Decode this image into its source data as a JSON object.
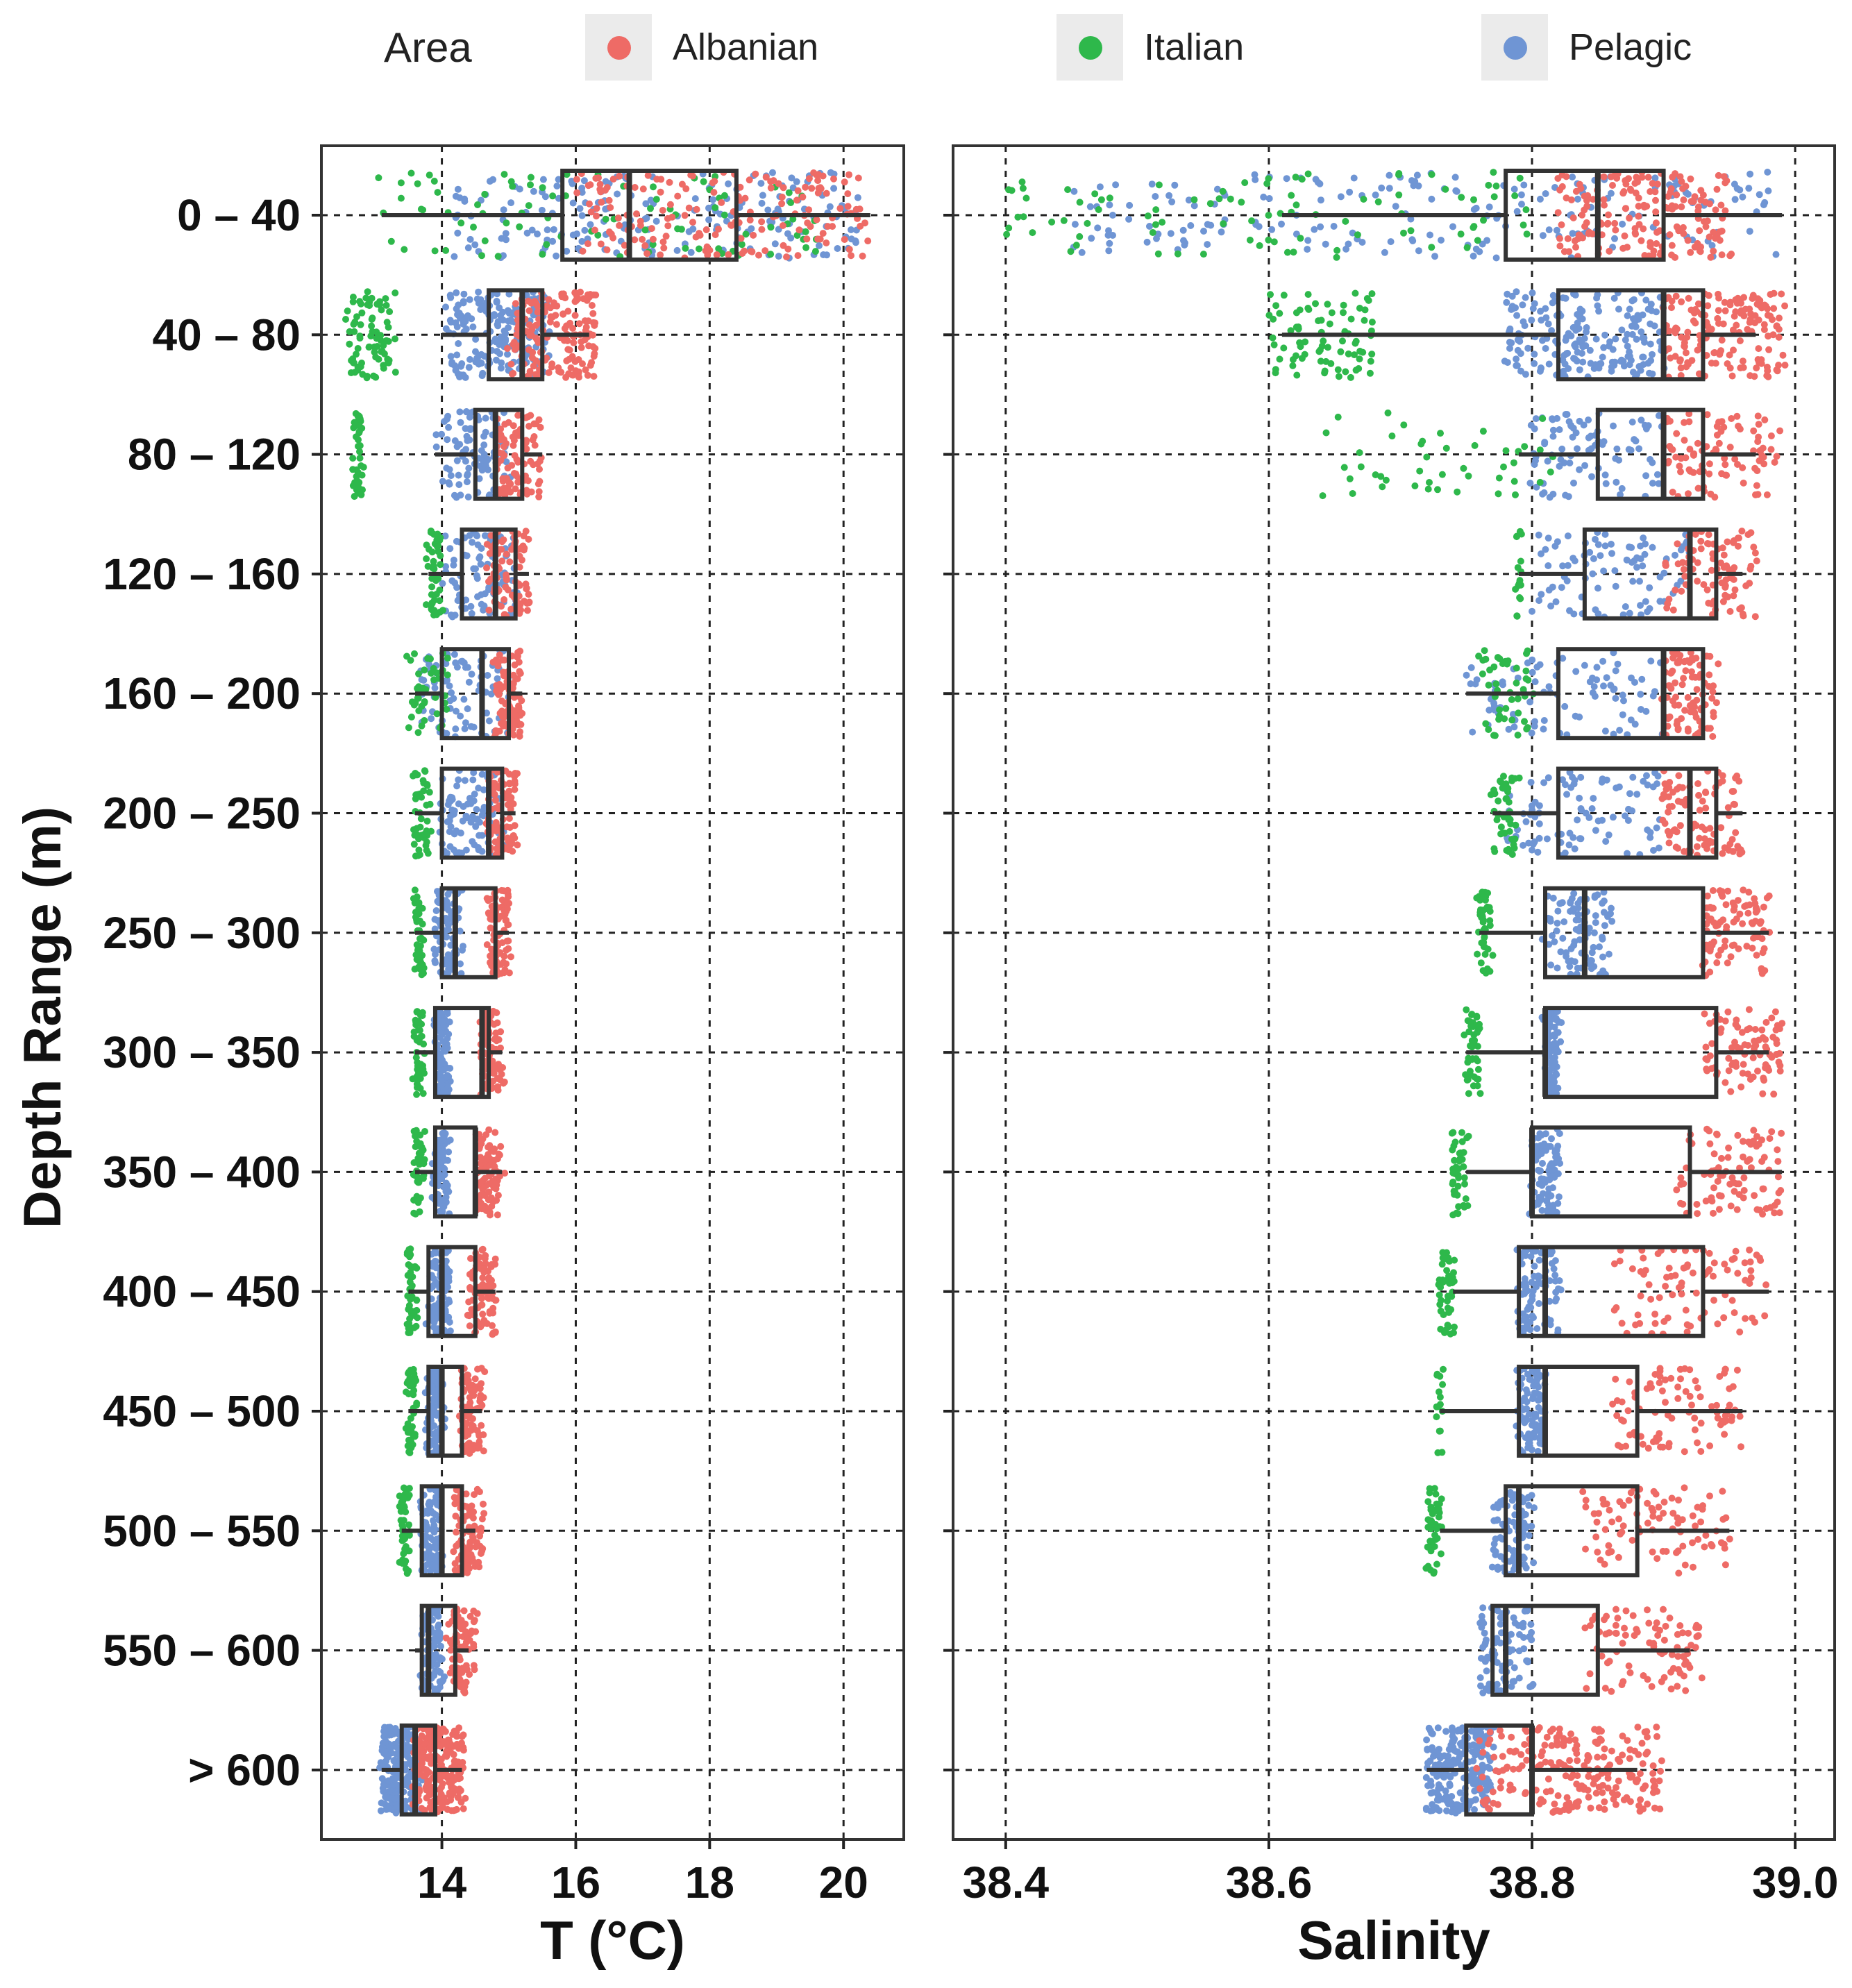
{
  "legend": {
    "title": "Area",
    "items": [
      {
        "label": "Albanian",
        "color": "#ee6b66"
      },
      {
        "label": "Italian",
        "color": "#2eb84b"
      },
      {
        "label": "Pelagic",
        "color": "#6f95d4"
      }
    ]
  },
  "y_axis": {
    "title": "Depth Range (m)",
    "categories": [
      "0 – 40",
      "40 – 80",
      "80 – 120",
      "120 – 160",
      "160 – 200",
      "200 – 250",
      "250 – 300",
      "300 – 350",
      "350 – 400",
      "400 – 450",
      "450 – 500",
      "500 – 550",
      "550 – 600",
      "> 600"
    ]
  },
  "chart_data": [
    {
      "type": "boxplot",
      "title": "",
      "xlabel": "T (°C)",
      "ylabel": "Depth Range (m)",
      "xlim": [
        12.2,
        20.9
      ],
      "xticks": [
        14,
        16,
        18,
        20
      ],
      "xtick_labels": [
        "14",
        "16",
        "18",
        "20"
      ],
      "categories": [
        "0 – 40",
        "40 – 80",
        "80 – 120",
        "120 – 160",
        "160 – 200",
        "200 – 250",
        "250 – 300",
        "300 – 350",
        "350 – 400",
        "400 – 450",
        "450 – 500",
        "500 – 550",
        "550 – 600",
        "> 600"
      ],
      "boxes": [
        {
          "whisker_low": 13.1,
          "q1": 15.8,
          "median": 16.8,
          "q3": 18.4,
          "whisker_high": 20.4
        },
        {
          "whisker_low": 14.0,
          "q1": 14.7,
          "median": 15.2,
          "q3": 15.5,
          "whisker_high": 16.2
        },
        {
          "whisker_low": 13.9,
          "q1": 14.5,
          "median": 14.8,
          "q3": 15.2,
          "whisker_high": 15.5
        },
        {
          "whisker_low": 13.8,
          "q1": 14.3,
          "median": 14.8,
          "q3": 15.1,
          "whisker_high": 15.3
        },
        {
          "whisker_low": 13.6,
          "q1": 14.0,
          "median": 14.6,
          "q3": 15.0,
          "whisker_high": 15.2
        },
        {
          "whisker_low": 13.6,
          "q1": 14.0,
          "median": 14.7,
          "q3": 14.9,
          "whisker_high": 15.1
        },
        {
          "whisker_low": 13.6,
          "q1": 14.0,
          "median": 14.2,
          "q3": 14.8,
          "whisker_high": 15.0
        },
        {
          "whisker_low": 13.6,
          "q1": 13.9,
          "median": 14.6,
          "q3": 14.7,
          "whisker_high": 14.9
        },
        {
          "whisker_low": 13.6,
          "q1": 13.9,
          "median": 14.5,
          "q3": 14.5,
          "whisker_high": 14.9
        },
        {
          "whisker_low": 13.5,
          "q1": 13.8,
          "median": 14.0,
          "q3": 14.5,
          "whisker_high": 14.8
        },
        {
          "whisker_low": 13.5,
          "q1": 13.8,
          "median": 14.0,
          "q3": 14.3,
          "whisker_high": 14.6
        },
        {
          "whisker_low": 13.4,
          "q1": 13.7,
          "median": 14.0,
          "q3": 14.3,
          "whisker_high": 14.5
        },
        {
          "whisker_low": 13.6,
          "q1": 13.7,
          "median": 13.8,
          "q3": 14.2,
          "whisker_high": 14.4
        },
        {
          "whisker_low": 13.1,
          "q1": 13.4,
          "median": 13.6,
          "q3": 13.9,
          "whisker_high": 14.3
        }
      ],
      "points": [
        {
          "Albanian": [
            16.0,
            20.4
          ],
          "Italian": [
            13.1,
            20.0
          ],
          "Pelagic": [
            14.2,
            20.2
          ]
        },
        {
          "Albanian": [
            15.0,
            16.3
          ],
          "Italian": [
            12.6,
            13.3
          ],
          "Pelagic": [
            14.1,
            15.6
          ]
        },
        {
          "Albanian": [
            14.8,
            15.5
          ],
          "Italian": [
            12.7,
            12.8
          ],
          "Pelagic": [
            13.9,
            15.0
          ]
        },
        {
          "Albanian": [
            14.7,
            15.3
          ],
          "Italian": [
            13.8,
            14.0
          ],
          "Pelagic": [
            14.0,
            15.1
          ]
        },
        {
          "Albanian": [
            14.8,
            15.2
          ],
          "Italian": [
            13.5,
            14.1
          ],
          "Pelagic": [
            13.7,
            15.0
          ]
        },
        {
          "Albanian": [
            14.7,
            15.1
          ],
          "Italian": [
            13.6,
            13.8
          ],
          "Pelagic": [
            14.0,
            14.9
          ]
        },
        {
          "Albanian": [
            14.7,
            15.0
          ],
          "Italian": [
            13.6,
            13.7
          ],
          "Pelagic": [
            13.9,
            14.3
          ]
        },
        {
          "Albanian": [
            14.6,
            14.9
          ],
          "Italian": [
            13.6,
            13.7
          ],
          "Pelagic": [
            13.9,
            14.1
          ]
        },
        {
          "Albanian": [
            14.5,
            14.9
          ],
          "Italian": [
            13.6,
            13.7
          ],
          "Pelagic": [
            13.9,
            14.1
          ]
        },
        {
          "Albanian": [
            14.4,
            14.8
          ],
          "Italian": [
            13.5,
            13.6
          ],
          "Pelagic": [
            13.8,
            14.1
          ]
        },
        {
          "Albanian": [
            14.3,
            14.6
          ],
          "Italian": [
            13.5,
            13.6
          ],
          "Pelagic": [
            13.8,
            14.0
          ]
        },
        {
          "Albanian": [
            14.2,
            14.6
          ],
          "Italian": [
            13.4,
            13.5
          ],
          "Pelagic": [
            13.7,
            14.0
          ]
        },
        {
          "Albanian": [
            14.1,
            14.5
          ],
          "Italian": [],
          "Pelagic": [
            13.7,
            14.0
          ]
        },
        {
          "Albanian": [
            13.6,
            14.3
          ],
          "Italian": [],
          "Pelagic": [
            13.1,
            13.7
          ]
        }
      ]
    },
    {
      "type": "boxplot",
      "title": "",
      "xlabel": "Salinity",
      "ylabel": "",
      "xlim": [
        38.36,
        39.03
      ],
      "xticks": [
        38.4,
        38.6,
        38.8,
        39.0
      ],
      "xtick_labels": [
        "38.4",
        "38.6",
        "38.8",
        "39.0"
      ],
      "categories": [
        "0 – 40",
        "40 – 80",
        "80 – 120",
        "120 – 160",
        "160 – 200",
        "200 – 250",
        "250 – 300",
        "300 – 350",
        "350 – 400",
        "400 – 450",
        "450 – 500",
        "500 – 550",
        "550 – 600",
        "> 600"
      ],
      "boxes": [
        {
          "whisker_low": 38.61,
          "q1": 38.78,
          "median": 38.85,
          "q3": 38.9,
          "whisker_high": 38.99
        },
        {
          "whisker_low": 38.61,
          "q1": 38.82,
          "median": 38.9,
          "q3": 38.93,
          "whisker_high": 38.97
        },
        {
          "whisker_low": 38.79,
          "q1": 38.85,
          "median": 38.9,
          "q3": 38.93,
          "whisker_high": 38.97
        },
        {
          "whisker_low": 38.79,
          "q1": 38.84,
          "median": 38.92,
          "q3": 38.94,
          "whisker_high": 38.96
        },
        {
          "whisker_low": 38.75,
          "q1": 38.82,
          "median": 38.9,
          "q3": 38.93,
          "whisker_high": 38.93
        },
        {
          "whisker_low": 38.77,
          "q1": 38.82,
          "median": 38.92,
          "q3": 38.94,
          "whisker_high": 38.96
        },
        {
          "whisker_low": 38.76,
          "q1": 38.81,
          "median": 38.84,
          "q3": 38.93,
          "whisker_high": 38.98
        },
        {
          "whisker_low": 38.75,
          "q1": 38.81,
          "median": 38.81,
          "q3": 38.94,
          "whisker_high": 38.98
        },
        {
          "whisker_low": 38.75,
          "q1": 38.8,
          "median": 38.8,
          "q3": 38.92,
          "whisker_high": 38.99
        },
        {
          "whisker_low": 38.74,
          "q1": 38.79,
          "median": 38.81,
          "q3": 38.93,
          "whisker_high": 38.98
        },
        {
          "whisker_low": 38.73,
          "q1": 38.79,
          "median": 38.81,
          "q3": 38.88,
          "whisker_high": 38.96
        },
        {
          "whisker_low": 38.73,
          "q1": 38.78,
          "median": 38.79,
          "q3": 38.88,
          "whisker_high": 38.95
        },
        {
          "whisker_low": 38.77,
          "q1": 38.77,
          "median": 38.78,
          "q3": 38.85,
          "whisker_high": 38.92
        },
        {
          "whisker_low": 38.72,
          "q1": 38.75,
          "median": 38.8,
          "q3": 38.8,
          "whisker_high": 38.88
        }
      ],
      "points": [
        {
          "Albanian": [
            38.82,
            38.95
          ],
          "Italian": [
            38.4,
            38.8
          ],
          "Pelagic": [
            38.45,
            38.99
          ]
        },
        {
          "Albanian": [
            38.9,
            38.99
          ],
          "Italian": [
            38.6,
            38.68
          ],
          "Pelagic": [
            38.78,
            38.9
          ]
        },
        {
          "Albanian": [
            38.9,
            38.99
          ],
          "Italian": [
            38.64,
            38.82
          ],
          "Pelagic": [
            38.8,
            38.9
          ]
        },
        {
          "Albanian": [
            38.9,
            38.97
          ],
          "Italian": [
            38.79,
            38.79
          ],
          "Pelagic": [
            38.8,
            38.92
          ]
        },
        {
          "Albanian": [
            38.9,
            38.94
          ],
          "Italian": [
            38.76,
            38.8
          ],
          "Pelagic": [
            38.75,
            38.9
          ]
        },
        {
          "Albanian": [
            38.9,
            38.96
          ],
          "Italian": [
            38.77,
            38.79
          ],
          "Pelagic": [
            38.78,
            38.9
          ]
        },
        {
          "Albanian": [
            38.93,
            38.98
          ],
          "Italian": [
            38.76,
            38.77
          ],
          "Pelagic": [
            38.81,
            38.86
          ]
        },
        {
          "Albanian": [
            38.93,
            38.99
          ],
          "Italian": [
            38.75,
            38.76
          ],
          "Pelagic": [
            38.81,
            38.82
          ]
        },
        {
          "Albanian": [
            38.91,
            38.99
          ],
          "Italian": [
            38.74,
            38.75
          ],
          "Pelagic": [
            38.8,
            38.82
          ]
        },
        {
          "Albanian": [
            38.86,
            38.98
          ],
          "Italian": [
            38.73,
            38.74
          ],
          "Pelagic": [
            38.79,
            38.82
          ]
        },
        {
          "Albanian": [
            38.86,
            38.96
          ],
          "Italian": [
            38.73,
            38.73
          ],
          "Pelagic": [
            38.79,
            38.81
          ]
        },
        {
          "Albanian": [
            38.84,
            38.95
          ],
          "Italian": [
            38.72,
            38.73
          ],
          "Pelagic": [
            38.77,
            38.8
          ]
        },
        {
          "Albanian": [
            38.84,
            38.93
          ],
          "Italian": [],
          "Pelagic": [
            38.76,
            38.8
          ]
        },
        {
          "Albanian": [
            38.76,
            38.9
          ],
          "Italian": [],
          "Pelagic": [
            38.72,
            38.77
          ]
        }
      ]
    }
  ]
}
